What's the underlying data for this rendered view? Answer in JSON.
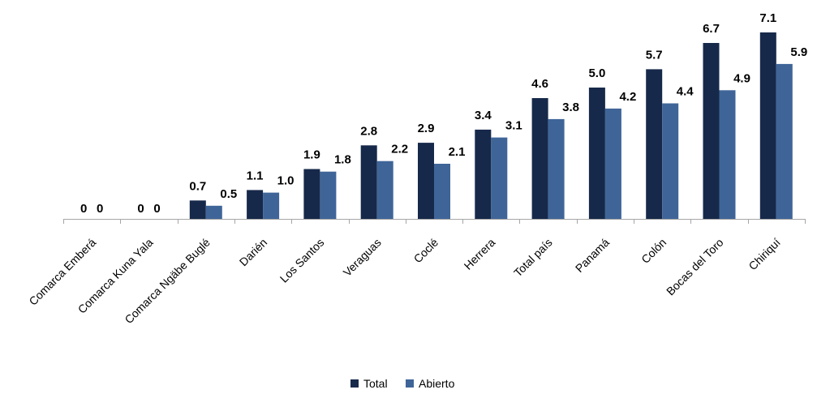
{
  "chart_data": {
    "type": "bar",
    "title": "",
    "xlabel": "",
    "ylabel": "",
    "ylim": [
      0,
      7.1
    ],
    "grid": false,
    "legend_position": "bottom",
    "categories": [
      "Comarca Emberá",
      "Comarca Kuna Yala",
      "Comarca Ngäbe Buglé",
      "Darién",
      "Los Santos",
      "Veraguas",
      "Coclé",
      "Herrera",
      "Total país",
      "Panamá",
      "Colón",
      "Bocas del Toro",
      "Chiriquí"
    ],
    "series": [
      {
        "name": "Total",
        "color": "#17294a",
        "values": [
          0,
          0,
          0.7,
          1.1,
          1.9,
          2.8,
          2.9,
          3.4,
          4.6,
          5.0,
          5.7,
          6.7,
          7.1
        ],
        "labels": [
          "0",
          "0",
          "0.7",
          "1.1",
          "1.9",
          "2.8",
          "2.9",
          "3.4",
          "4.6",
          "5.0",
          "5.7",
          "6.7",
          "7.1"
        ]
      },
      {
        "name": "Abierto",
        "color": "#3f6598",
        "values": [
          0,
          0,
          0.5,
          1.0,
          1.8,
          2.2,
          2.1,
          3.1,
          3.8,
          4.2,
          4.4,
          4.9,
          5.9
        ],
        "labels": [
          "0",
          "0",
          "0.5",
          "1.0",
          "1.8",
          "2.2",
          "2.1",
          "3.1",
          "3.8",
          "4.2",
          "4.4",
          "4.9",
          "5.9"
        ]
      }
    ]
  }
}
